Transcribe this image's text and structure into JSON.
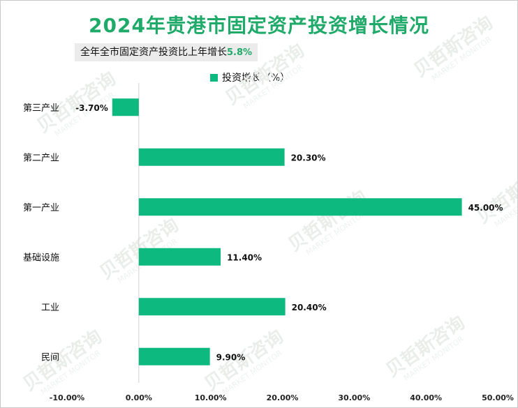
{
  "chart_data": {
    "type": "bar",
    "orientation": "horizontal",
    "title": "2024年贵港市固定资产投资增长情况",
    "subtitle": {
      "label": "全年全市固定资产投资比上年增长",
      "value": "5.8%"
    },
    "legend": [
      "投资增长（%）"
    ],
    "legend_position": "top",
    "categories": [
      "第三产业",
      "第二产业",
      "第一产业",
      "基础设施",
      "工业",
      "民间"
    ],
    "series": [
      {
        "name": "投资增长（%）",
        "values": [
          -3.7,
          20.3,
          45.0,
          11.4,
          20.4,
          9.9
        ],
        "labels": [
          "-3.70%",
          "20.30%",
          "45.00%",
          "11.40%",
          "20.40%",
          "9.90%"
        ]
      }
    ],
    "xlim": [
      -10,
      50
    ],
    "xticks": [
      -10,
      0,
      10,
      20,
      30,
      40,
      50
    ],
    "xtick_labels": [
      "-10.00%",
      "0.00%",
      "10.00%",
      "20.00%",
      "30.00%",
      "40.00%",
      "50.00%"
    ],
    "grid": false,
    "bar_color": "#0db97f",
    "title_color": "#1faa6a"
  },
  "watermark": {
    "cn": "贝哲斯咨询",
    "en": "MARKET MONITOR"
  }
}
